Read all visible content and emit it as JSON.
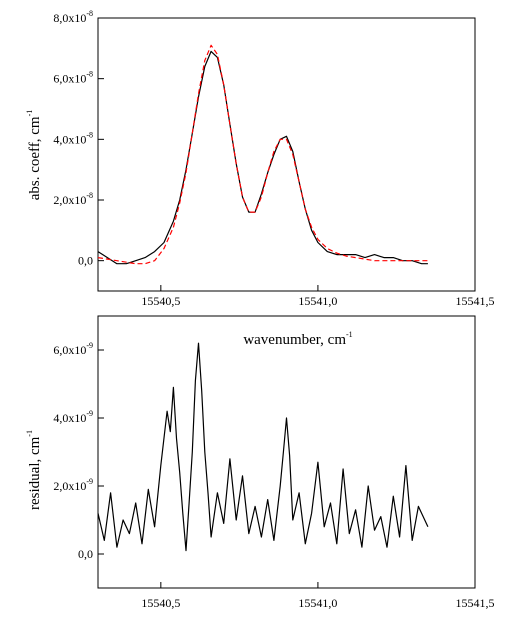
{
  "chart_data": [
    {
      "type": "line",
      "xlabel": "wavenumber, cm",
      "xlabel_sup": "-1",
      "ylabel": "abs. coeff, cm",
      "ylabel_sup": "-1",
      "xlim": [
        15540.3,
        15541.5
      ],
      "ylim": [
        -1e-08,
        8e-08
      ],
      "x_ticks": [
        15540.5,
        15541.0,
        15541.5
      ],
      "x_tick_labels": [
        "15540,5",
        "15541,0",
        "15541,5"
      ],
      "y_ticks": [
        0.0,
        2e-08,
        4e-08,
        6e-08,
        8e-08
      ],
      "y_tick_labels": [
        {
          "mant": "0,0",
          "exp": ""
        },
        {
          "mant": "2,0x10",
          "exp": "-8"
        },
        {
          "mant": "4,0x10",
          "exp": "-8"
        },
        {
          "mant": "6,0x10",
          "exp": "-8"
        },
        {
          "mant": "8,0x10",
          "exp": "-8"
        }
      ],
      "grid": false,
      "series": [
        {
          "role": "measured",
          "color": "#000000",
          "style": "solid",
          "x": [
            15540.3,
            15540.33,
            15540.36,
            15540.39,
            15540.42,
            15540.45,
            15540.48,
            15540.51,
            15540.54,
            15540.56,
            15540.58,
            15540.6,
            15540.62,
            15540.64,
            15540.66,
            15540.68,
            15540.7,
            15540.72,
            15540.74,
            15540.76,
            15540.78,
            15540.8,
            15540.82,
            15540.84,
            15540.86,
            15540.88,
            15540.9,
            15540.92,
            15540.94,
            15540.96,
            15540.98,
            15541.0,
            15541.03,
            15541.06,
            15541.09,
            15541.12,
            15541.15,
            15541.18,
            15541.21,
            15541.24,
            15541.27,
            15541.3,
            15541.33,
            15541.35
          ],
          "y": [
            3e-09,
            1e-09,
            -1e-09,
            -1e-09,
            0.0,
            1e-09,
            3e-09,
            6e-09,
            1.3e-08,
            2e-08,
            3e-08,
            4.2e-08,
            5.4e-08,
            6.4e-08,
            6.9e-08,
            6.7e-08,
            5.8e-08,
            4.5e-08,
            3.2e-08,
            2.1e-08,
            1.6e-08,
            1.6e-08,
            2.2e-08,
            2.9e-08,
            3.5e-08,
            4e-08,
            4.1e-08,
            3.6e-08,
            2.6e-08,
            1.7e-08,
            1e-08,
            6e-09,
            3e-09,
            2e-09,
            2e-09,
            2e-09,
            1e-09,
            2e-09,
            1e-09,
            1e-09,
            0.0,
            0.0,
            -1e-09,
            -1e-09
          ]
        },
        {
          "role": "fit",
          "color": "#ff0000",
          "style": "dashed",
          "x": [
            15540.3,
            15540.33,
            15540.36,
            15540.39,
            15540.42,
            15540.45,
            15540.48,
            15540.51,
            15540.54,
            15540.56,
            15540.58,
            15540.6,
            15540.62,
            15540.64,
            15540.66,
            15540.68,
            15540.7,
            15540.72,
            15540.74,
            15540.76,
            15540.78,
            15540.8,
            15540.82,
            15540.84,
            15540.86,
            15540.88,
            15540.9,
            15540.92,
            15540.94,
            15540.96,
            15540.98,
            15541.0,
            15541.03,
            15541.06,
            15541.09,
            15541.12,
            15541.15,
            15541.18,
            15541.21,
            15541.24,
            15541.27,
            15541.3,
            15541.33,
            15541.35
          ],
          "y": [
            1e-09,
            5e-10,
            0.0,
            -5e-10,
            -1e-09,
            -1e-09,
            0.0,
            4e-09,
            1.1e-08,
            1.9e-08,
            2.9e-08,
            4.2e-08,
            5.5e-08,
            6.6e-08,
            7.1e-08,
            6.8e-08,
            5.8e-08,
            4.5e-08,
            3.2e-08,
            2.1e-08,
            1.6e-08,
            1.6e-08,
            2.1e-08,
            2.9e-08,
            3.6e-08,
            4e-08,
            4e-08,
            3.5e-08,
            2.6e-08,
            1.7e-08,
            1.1e-08,
            7e-09,
            4e-09,
            2.5e-09,
            1.5e-09,
            1e-09,
            5e-10,
            0.0,
            0.0,
            0.0,
            0.0,
            0.0,
            0.0,
            0.0
          ]
        }
      ]
    },
    {
      "type": "line",
      "ylabel": "residual, cm",
      "ylabel_sup": "-1",
      "xlim": [
        15540.3,
        15541.5
      ],
      "ylim": [
        -1e-09,
        7e-09
      ],
      "x_ticks": [
        15540.5,
        15541.0,
        15541.5
      ],
      "x_tick_labels": [
        "15540,5",
        "15541,0",
        "15541,5"
      ],
      "y_ticks": [
        0.0,
        2e-09,
        4e-09,
        6e-09
      ],
      "y_tick_labels": [
        {
          "mant": "0,0",
          "exp": ""
        },
        {
          "mant": "2,0x10",
          "exp": "-9"
        },
        {
          "mant": "4,0x10",
          "exp": "-9"
        },
        {
          "mant": "6,0x10",
          "exp": "-9"
        }
      ],
      "grid": false,
      "series": [
        {
          "role": "residual",
          "color": "#000000",
          "style": "solid",
          "x": [
            15540.3,
            15540.32,
            15540.34,
            15540.36,
            15540.38,
            15540.4,
            15540.42,
            15540.44,
            15540.46,
            15540.48,
            15540.5,
            15540.52,
            15540.53,
            15540.54,
            15540.55,
            15540.56,
            15540.57,
            15540.58,
            15540.59,
            15540.6,
            15540.61,
            15540.62,
            15540.63,
            15540.64,
            15540.65,
            15540.66,
            15540.68,
            15540.7,
            15540.72,
            15540.74,
            15540.76,
            15540.78,
            15540.8,
            15540.82,
            15540.84,
            15540.86,
            15540.88,
            15540.89,
            15540.9,
            15540.91,
            15540.92,
            15540.94,
            15540.96,
            15540.98,
            15541.0,
            15541.02,
            15541.04,
            15541.06,
            15541.08,
            15541.1,
            15541.12,
            15541.14,
            15541.16,
            15541.18,
            15541.2,
            15541.22,
            15541.24,
            15541.26,
            15541.28,
            15541.3,
            15541.32,
            15541.35
          ],
          "y": [
            1.2e-09,
            4e-10,
            1.8e-09,
            2e-10,
            1e-09,
            6e-10,
            1.5e-09,
            3e-10,
            1.9e-09,
            8e-10,
            2.6e-09,
            4.2e-09,
            3.6e-09,
            4.9e-09,
            3.4e-09,
            2.4e-09,
            1.2e-09,
            1e-10,
            1.5e-09,
            3e-09,
            5.1e-09,
            6.2e-09,
            4.8e-09,
            3e-09,
            1.8e-09,
            5e-10,
            1.8e-09,
            9e-10,
            2.8e-09,
            1e-09,
            2.3e-09,
            6e-10,
            1.4e-09,
            5e-10,
            1.6e-09,
            4e-10,
            2e-09,
            3e-09,
            4e-09,
            2.9e-09,
            1e-09,
            1.8e-09,
            3e-10,
            1.2e-09,
            2.7e-09,
            8e-10,
            1.5e-09,
            3e-10,
            2.5e-09,
            6e-10,
            1.3e-09,
            2e-10,
            2e-09,
            7e-10,
            1.1e-09,
            2e-10,
            1.7e-09,
            5e-10,
            2.6e-09,
            4e-10,
            1.4e-09,
            8e-10
          ]
        }
      ]
    }
  ]
}
